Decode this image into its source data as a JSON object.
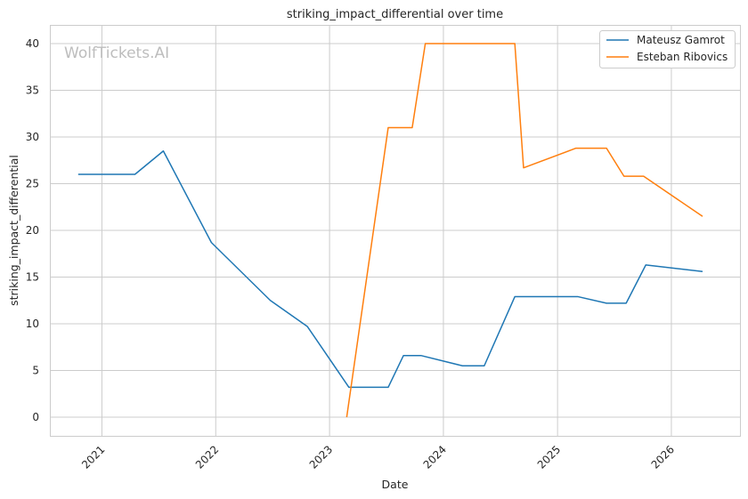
{
  "chart_data": {
    "type": "line",
    "title": "striking_impact_differential over time",
    "xlabel": "Date",
    "ylabel": "striking_impact_differential",
    "watermark": "WolfTickets.AI",
    "xlim": [
      "2020-07-21",
      "2026-08-09"
    ],
    "ylim": [
      -2,
      42
    ],
    "x_ticks": [
      "2021-01-01",
      "2022-01-01",
      "2023-01-01",
      "2024-01-01",
      "2025-01-01",
      "2026-01-01"
    ],
    "x_tick_labels": [
      "2021",
      "2022",
      "2023",
      "2024",
      "2025",
      "2026"
    ],
    "y_ticks": [
      0,
      5,
      10,
      15,
      20,
      25,
      30,
      35,
      40
    ],
    "grid": true,
    "legend": "top-right",
    "series": [
      {
        "name": "Mateusz Gamrot",
        "color": "#1f77b4",
        "points": [
          {
            "x": "2020-10-17",
            "y": 26.0
          },
          {
            "x": "2021-04-17",
            "y": 26.0
          },
          {
            "x": "2021-07-17",
            "y": 28.5
          },
          {
            "x": "2021-12-18",
            "y": 18.7
          },
          {
            "x": "2022-06-25",
            "y": 12.5
          },
          {
            "x": "2022-10-22",
            "y": 9.7
          },
          {
            "x": "2023-03-04",
            "y": 3.2
          },
          {
            "x": "2023-07-08",
            "y": 3.2
          },
          {
            "x": "2023-08-26",
            "y": 6.6
          },
          {
            "x": "2023-10-21",
            "y": 6.6
          },
          {
            "x": "2024-03-02",
            "y": 5.5
          },
          {
            "x": "2024-05-11",
            "y": 5.5
          },
          {
            "x": "2024-08-17",
            "y": 12.9
          },
          {
            "x": "2025-03-08",
            "y": 12.9
          },
          {
            "x": "2025-06-07",
            "y": 12.2
          },
          {
            "x": "2025-08-09",
            "y": 12.2
          },
          {
            "x": "2025-10-11",
            "y": 16.3
          },
          {
            "x": "2026-04-11",
            "y": 15.6
          }
        ]
      },
      {
        "name": "Esteban Ribovics",
        "color": "#ff7f0e",
        "points": [
          {
            "x": "2023-02-25",
            "y": 0.0
          },
          {
            "x": "2023-07-08",
            "y": 31.0
          },
          {
            "x": "2023-09-23",
            "y": 31.0
          },
          {
            "x": "2023-11-04",
            "y": 40.0
          },
          {
            "x": "2024-08-17",
            "y": 40.0
          },
          {
            "x": "2024-09-14",
            "y": 26.7
          },
          {
            "x": "2025-03-01",
            "y": 28.8
          },
          {
            "x": "2025-06-07",
            "y": 28.8
          },
          {
            "x": "2025-08-02",
            "y": 25.8
          },
          {
            "x": "2025-10-04",
            "y": 25.8
          },
          {
            "x": "2026-04-11",
            "y": 21.5
          }
        ]
      }
    ]
  }
}
